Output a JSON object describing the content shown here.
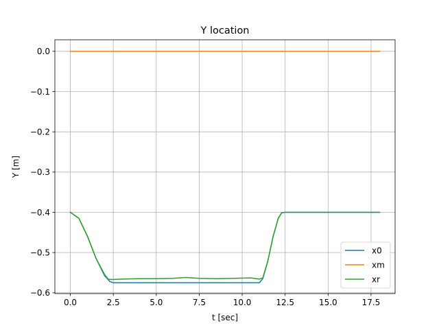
{
  "chart_data": {
    "type": "line",
    "title": "Y location",
    "xlabel": "t [sec]",
    "ylabel": "Y [m]",
    "xlim": [
      -0.9,
      18.9
    ],
    "ylim": [
      -0.602,
      0.0287
    ],
    "xticks": [
      0.0,
      2.5,
      5.0,
      7.5,
      10.0,
      12.5,
      15.0,
      17.5
    ],
    "xtick_labels": [
      "0.0",
      "2.5",
      "5.0",
      "7.5",
      "10.0",
      "12.5",
      "15.0",
      "17.5"
    ],
    "yticks": [
      0.0,
      -0.1,
      -0.2,
      -0.3,
      -0.4,
      -0.5,
      -0.6
    ],
    "ytick_labels": [
      "0.0",
      "−0.1",
      "−0.2",
      "−0.3",
      "−0.4",
      "−0.5",
      "−0.6"
    ],
    "grid": true,
    "legend": "lower-right",
    "series": [
      {
        "name": "x0",
        "color": "#1f77b4",
        "x": [
          0,
          0.5,
          1.0,
          1.5,
          2.0,
          2.3,
          2.5,
          3.0,
          5.0,
          7.5,
          10.0,
          10.8,
          11.0,
          11.2,
          11.5,
          11.8,
          12.1,
          12.3,
          12.5,
          15.0,
          18.0
        ],
        "y": [
          -0.4,
          -0.415,
          -0.46,
          -0.515,
          -0.558,
          -0.572,
          -0.575,
          -0.575,
          -0.575,
          -0.575,
          -0.575,
          -0.575,
          -0.575,
          -0.565,
          -0.52,
          -0.46,
          -0.415,
          -0.401,
          -0.4,
          -0.4,
          -0.4
        ]
      },
      {
        "name": "xm",
        "color": "#ff7f0e",
        "x": [
          0,
          18.0
        ],
        "y": [
          0.0,
          0.0
        ]
      },
      {
        "name": "xr",
        "color": "#2ca02c",
        "x": [
          0,
          0.5,
          1.0,
          1.5,
          2.0,
          2.2,
          2.4,
          3.0,
          4.0,
          5.0,
          6.0,
          6.7,
          7.5,
          8.5,
          9.5,
          10.5,
          11.0,
          11.2,
          11.5,
          11.8,
          12.1,
          12.3,
          12.5,
          15.0,
          18.0
        ],
        "y": [
          -0.4,
          -0.415,
          -0.46,
          -0.515,
          -0.555,
          -0.566,
          -0.567,
          -0.566,
          -0.565,
          -0.565,
          -0.564,
          -0.562,
          -0.564,
          -0.565,
          -0.564,
          -0.563,
          -0.566,
          -0.563,
          -0.52,
          -0.46,
          -0.415,
          -0.401,
          -0.4,
          -0.4,
          -0.4
        ]
      }
    ]
  }
}
